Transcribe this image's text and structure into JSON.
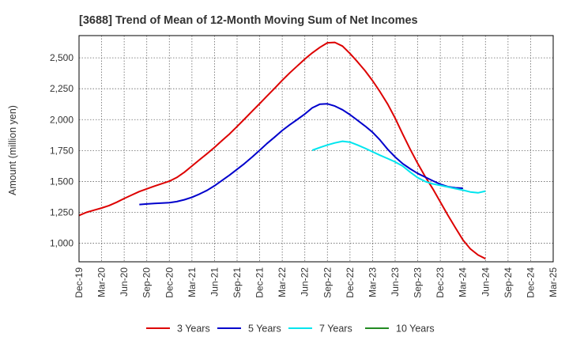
{
  "chart_data": {
    "type": "line",
    "title": "[3688]  Trend of Mean of 12-Month Moving Sum of Net Incomes",
    "xlabel": "",
    "ylabel": "Amount (million yen)",
    "ylim": [
      850,
      2680
    ],
    "yticks": [
      1000,
      1250,
      1500,
      1750,
      2000,
      2250,
      2500
    ],
    "ytick_labels": [
      "1,000",
      "1,250",
      "1,500",
      "1,750",
      "2,000",
      "2,250",
      "2,500"
    ],
    "x_categories": [
      "Dec-19",
      "Mar-20",
      "Jun-20",
      "Sep-20",
      "Dec-20",
      "Mar-21",
      "Jun-21",
      "Sep-21",
      "Dec-21",
      "Mar-22",
      "Jun-22",
      "Sep-22",
      "Dec-22",
      "Mar-23",
      "Jun-23",
      "Sep-23",
      "Dec-23",
      "Mar-24",
      "Jun-24",
      "Sep-24",
      "Dec-24",
      "Mar-25"
    ],
    "grid": true,
    "legend_position": "bottom",
    "series": [
      {
        "name": "3 Years",
        "color": "#dd0000",
        "values": [
          [
            0,
            1225
          ],
          [
            0.33,
            1250
          ],
          [
            0.67,
            1268
          ],
          [
            1,
            1285
          ],
          [
            1.33,
            1305
          ],
          [
            1.67,
            1332
          ],
          [
            2,
            1362
          ],
          [
            2.33,
            1390
          ],
          [
            2.67,
            1418
          ],
          [
            3,
            1440
          ],
          [
            3.33,
            1462
          ],
          [
            3.67,
            1482
          ],
          [
            4,
            1502
          ],
          [
            4.33,
            1532
          ],
          [
            4.67,
            1575
          ],
          [
            5,
            1625
          ],
          [
            5.33,
            1675
          ],
          [
            5.67,
            1725
          ],
          [
            6,
            1775
          ],
          [
            6.33,
            1830
          ],
          [
            6.67,
            1885
          ],
          [
            7,
            1945
          ],
          [
            7.33,
            2005
          ],
          [
            7.67,
            2068
          ],
          [
            8,
            2130
          ],
          [
            8.33,
            2192
          ],
          [
            8.67,
            2255
          ],
          [
            9,
            2318
          ],
          [
            9.33,
            2378
          ],
          [
            9.67,
            2435
          ],
          [
            10,
            2490
          ],
          [
            10.33,
            2540
          ],
          [
            10.67,
            2585
          ],
          [
            11,
            2622
          ],
          [
            11.33,
            2625
          ],
          [
            11.67,
            2595
          ],
          [
            12,
            2535
          ],
          [
            12.33,
            2468
          ],
          [
            12.67,
            2395
          ],
          [
            13,
            2315
          ],
          [
            13.33,
            2225
          ],
          [
            13.67,
            2125
          ],
          [
            14,
            2012
          ],
          [
            14.33,
            1885
          ],
          [
            14.67,
            1760
          ],
          [
            15,
            1645
          ],
          [
            15.33,
            1540
          ],
          [
            15.67,
            1440
          ],
          [
            16,
            1335
          ],
          [
            16.33,
            1228
          ],
          [
            16.67,
            1125
          ],
          [
            17,
            1028
          ],
          [
            17.33,
            955
          ],
          [
            17.67,
            905
          ],
          [
            18,
            875
          ]
        ]
      },
      {
        "name": "5 Years",
        "color": "#0000cc",
        "values": [
          [
            2.67,
            1313
          ],
          [
            3,
            1318
          ],
          [
            3.33,
            1322
          ],
          [
            3.67,
            1325
          ],
          [
            4,
            1328
          ],
          [
            4.33,
            1337
          ],
          [
            4.67,
            1352
          ],
          [
            5,
            1372
          ],
          [
            5.33,
            1398
          ],
          [
            5.67,
            1428
          ],
          [
            6,
            1465
          ],
          [
            6.33,
            1508
          ],
          [
            6.67,
            1552
          ],
          [
            7,
            1598
          ],
          [
            7.33,
            1645
          ],
          [
            7.67,
            1698
          ],
          [
            8,
            1752
          ],
          [
            8.33,
            1808
          ],
          [
            8.67,
            1860
          ],
          [
            9,
            1912
          ],
          [
            9.33,
            1958
          ],
          [
            9.67,
            2002
          ],
          [
            10,
            2045
          ],
          [
            10.33,
            2095
          ],
          [
            10.67,
            2125
          ],
          [
            11,
            2128
          ],
          [
            11.33,
            2110
          ],
          [
            11.67,
            2080
          ],
          [
            12,
            2040
          ],
          [
            12.33,
            1995
          ],
          [
            12.67,
            1948
          ],
          [
            13,
            1898
          ],
          [
            13.33,
            1835
          ],
          [
            13.67,
            1760
          ],
          [
            14,
            1698
          ],
          [
            14.33,
            1645
          ],
          [
            14.67,
            1602
          ],
          [
            15,
            1565
          ],
          [
            15.33,
            1535
          ],
          [
            15.67,
            1505
          ],
          [
            16,
            1478
          ],
          [
            16.33,
            1458
          ],
          [
            16.67,
            1448
          ],
          [
            17,
            1445
          ]
        ]
      },
      {
        "name": "7 Years",
        "color": "#00e5ee",
        "values": [
          [
            10.33,
            1752
          ],
          [
            10.67,
            1775
          ],
          [
            11,
            1795
          ],
          [
            11.33,
            1812
          ],
          [
            11.67,
            1825
          ],
          [
            12,
            1818
          ],
          [
            12.33,
            1795
          ],
          [
            12.67,
            1768
          ],
          [
            13,
            1740
          ],
          [
            13.33,
            1712
          ],
          [
            13.67,
            1685
          ],
          [
            14,
            1658
          ],
          [
            14.33,
            1625
          ],
          [
            14.67,
            1575
          ],
          [
            15,
            1530
          ],
          [
            15.33,
            1500
          ],
          [
            15.67,
            1480
          ],
          [
            16,
            1468
          ],
          [
            16.33,
            1455
          ],
          [
            16.67,
            1442
          ],
          [
            17,
            1430
          ],
          [
            17.33,
            1415
          ],
          [
            17.67,
            1408
          ],
          [
            18,
            1422
          ]
        ]
      },
      {
        "name": "10 Years",
        "color": "#228b22",
        "values": []
      }
    ]
  }
}
